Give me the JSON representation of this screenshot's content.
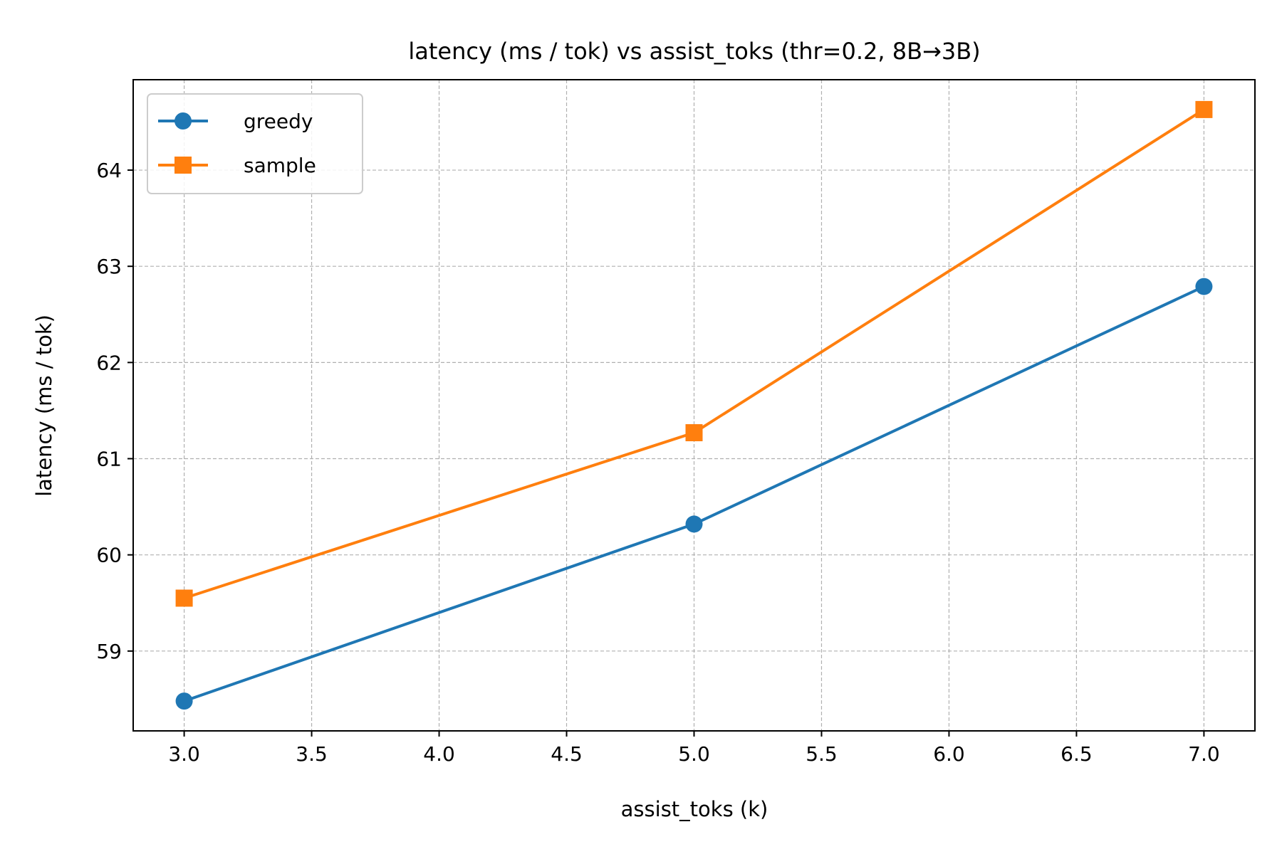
{
  "chart_data": {
    "type": "line",
    "title": "latency (ms / tok) vs assist_toks (thr=0.2, 8B→3B)",
    "xlabel": "assist_toks (k)",
    "ylabel": "latency (ms / tok)",
    "x": [
      3.0,
      5.0,
      7.0
    ],
    "xlim": [
      2.8,
      7.2
    ],
    "ylim": [
      58.17,
      64.94
    ],
    "xticks": [
      3.0,
      3.5,
      4.0,
      4.5,
      5.0,
      5.5,
      6.0,
      6.5,
      7.0
    ],
    "xtick_labels": [
      "3.0",
      "3.5",
      "4.0",
      "4.5",
      "5.0",
      "5.5",
      "6.0",
      "6.5",
      "7.0"
    ],
    "yticks": [
      59,
      60,
      61,
      62,
      63,
      64
    ],
    "ytick_labels": [
      "59",
      "60",
      "61",
      "62",
      "63",
      "64"
    ],
    "grid": true,
    "legend_position": "top-left",
    "series": [
      {
        "name": "greedy",
        "values": [
          58.48,
          60.32,
          62.79
        ],
        "color": "#1f77b4",
        "marker": "circle"
      },
      {
        "name": "sample",
        "values": [
          59.55,
          61.27,
          64.63
        ],
        "color": "#ff7f0e",
        "marker": "square"
      }
    ]
  }
}
